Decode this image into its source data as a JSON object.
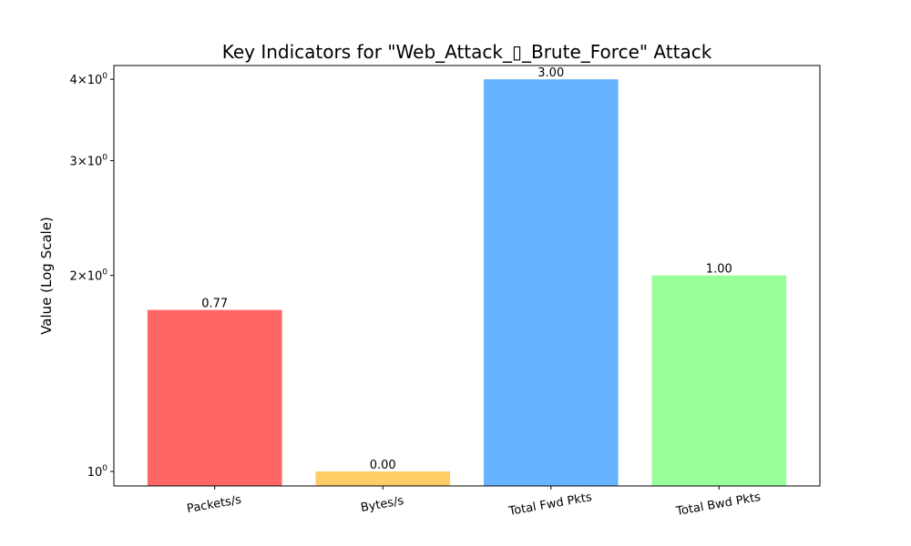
{
  "chart_data": {
    "type": "bar",
    "title": "Key Indicators for \"Web_Attack_▯_Brute_Force\" Attack",
    "xlabel": "",
    "ylabel": "Value (Log Scale)",
    "yscale": "log",
    "ylim": [
      0.95,
      4.2
    ],
    "grid": false,
    "categories": [
      "Packets/s",
      "Bytes/s",
      "Total Fwd Pkts",
      "Total Bwd Pkts"
    ],
    "values": [
      1.77,
      1.0,
      4.0,
      2.0
    ],
    "data_labels": [
      "0.77",
      "0.00",
      "3.00",
      "1.00"
    ],
    "colors": [
      "#ff6666",
      "#ffcc66",
      "#66b3ff",
      "#99ff99"
    ],
    "y_ticks": [
      {
        "value": 1,
        "mantissa": "",
        "exponent": "0"
      },
      {
        "value": 2,
        "mantissa": "2",
        "exponent": "0"
      },
      {
        "value": 3,
        "mantissa": "3",
        "exponent": "0"
      },
      {
        "value": 4,
        "mantissa": "4",
        "exponent": "0"
      }
    ]
  }
}
